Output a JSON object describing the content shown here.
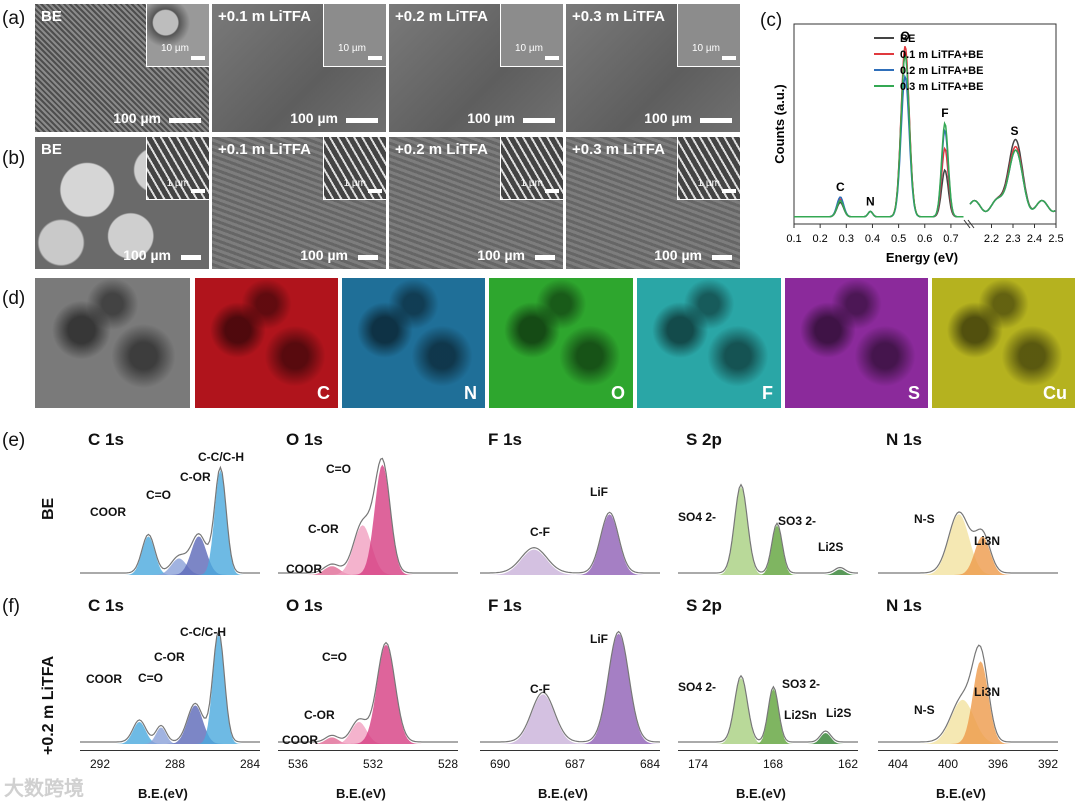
{
  "panel_labels": {
    "a": "(a)",
    "b": "(b)",
    "c": "(c)",
    "d": "(d)",
    "e": "(e)",
    "f": "(f)"
  },
  "sem_a": [
    {
      "label": "BE",
      "scale": "100 µm",
      "inset_scale": "10 µm"
    },
    {
      "label": "+0.1 m LiTFA",
      "scale": "100 µm",
      "inset_scale": "10 µm"
    },
    {
      "label": "+0.2 m LiTFA",
      "scale": "100 µm",
      "inset_scale": "10 µm"
    },
    {
      "label": "+0.3 m LiTFA",
      "scale": "100 µm",
      "inset_scale": "10 µm"
    }
  ],
  "sem_b": [
    {
      "label": "BE",
      "scale": "100 µm",
      "inset_scale": "1 µm"
    },
    {
      "label": "+0.1 m LiTFA",
      "scale": "100 µm",
      "inset_scale": "1 µm"
    },
    {
      "label": "+0.2 m LiTFA",
      "scale": "100 µm",
      "inset_scale": "1 µm"
    },
    {
      "label": "+0.3 m LiTFA",
      "scale": "100 µm",
      "inset_scale": "1 µm"
    }
  ],
  "eds_maps": [
    {
      "element": "",
      "color": "#7a7a7a"
    },
    {
      "element": "C",
      "color": "#b0141c"
    },
    {
      "element": "N",
      "color": "#1f6f98"
    },
    {
      "element": "O",
      "color": "#2ea62e"
    },
    {
      "element": "F",
      "color": "#2aa6a6"
    },
    {
      "element": "S",
      "color": "#8b2a9b"
    },
    {
      "element": "Cu",
      "color": "#b5b21f"
    }
  ],
  "chart_data": {
    "type": "line",
    "title": "",
    "xlabel": "Energy (eV)",
    "ylabel": "Counts (a.u.)",
    "xticks": [
      "0.1",
      "0.2",
      "0.3",
      "0.4",
      "0.5",
      "0.6",
      "0.7",
      "2.2",
      "2.3",
      "2.4",
      "2.5"
    ],
    "peak_labels": [
      "C",
      "N",
      "O",
      "F",
      "S"
    ],
    "legend": [
      "BE",
      "0.1 m LiTFA+BE",
      "0.2 m LiTFA+BE",
      "0.3 m LiTFA+BE"
    ],
    "series": [
      {
        "name": "BE",
        "color": "#444444",
        "peaks": {
          "C": 0.08,
          "N": 0.03,
          "O": 0.92,
          "F": 0.26,
          "S": 0.36
        }
      },
      {
        "name": "0.1 m LiTFA+BE",
        "color": "#e0393e",
        "peaks": {
          "C": 0.1,
          "N": 0.03,
          "O": 0.95,
          "F": 0.38,
          "S": 0.32
        }
      },
      {
        "name": "0.2 m LiTFA+BE",
        "color": "#2f6fba",
        "peaks": {
          "C": 0.11,
          "N": 0.03,
          "O": 0.78,
          "F": 0.48,
          "S": 0.3
        }
      },
      {
        "name": "0.3 m LiTFA+BE",
        "color": "#34a853",
        "peaks": {
          "C": 0.09,
          "N": 0.03,
          "O": 0.9,
          "F": 0.52,
          "S": 0.3
        }
      }
    ]
  },
  "xps": {
    "row_labels": {
      "e": "BE",
      "f": "+0.2 m LiTFA"
    },
    "x_axis_label": "B.E.(eV)",
    "panels": [
      {
        "title": "C 1s",
        "ticks": [
          "292",
          "288",
          "284"
        ],
        "e_ann": [
          "COOR",
          "C=O",
          "C-OR",
          "C-C/C-H"
        ],
        "f_ann": [
          "COOR",
          "C=O",
          "C-OR",
          "C-C/C-H"
        ]
      },
      {
        "title": "O 1s",
        "ticks": [
          "536",
          "532",
          "528"
        ],
        "e_ann": [
          "COOR",
          "C-OR",
          "C=O"
        ],
        "f_ann": [
          "COOR",
          "C-OR",
          "C=O"
        ]
      },
      {
        "title": "F 1s",
        "ticks": [
          "690",
          "687",
          "684"
        ],
        "e_ann": [
          "C-F",
          "LiF"
        ],
        "f_ann": [
          "C-F",
          "LiF"
        ]
      },
      {
        "title": "S 2p",
        "ticks": [
          "174",
          "168",
          "162"
        ],
        "e_ann": [
          "SO4 2-",
          "SO3 2-",
          "Li2S"
        ],
        "f_ann": [
          "SO4 2-",
          "SO3 2-",
          "Li2Sn",
          "Li2S"
        ]
      },
      {
        "title": "N 1s",
        "ticks": [
          "404",
          "400",
          "396",
          "392"
        ],
        "e_ann": [
          "N-S",
          "Li3N"
        ],
        "f_ann": [
          "N-S",
          "Li3N"
        ]
      }
    ]
  },
  "watermark": "大数跨境"
}
